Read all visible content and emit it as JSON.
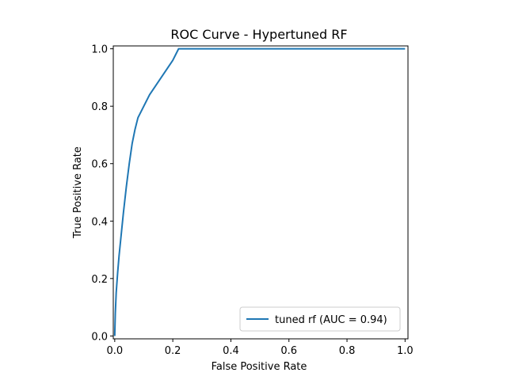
{
  "chart_data": {
    "type": "line",
    "title": "ROC Curve - Hypertuned RF",
    "xlabel": "False Positive Rate",
    "ylabel": "True Positive Rate",
    "xlim": [
      -0.005,
      1.01
    ],
    "ylim": [
      -0.01,
      1.01
    ],
    "x_ticks": [
      "0.0",
      "0.2",
      "0.4",
      "0.6",
      "0.8",
      "1.0"
    ],
    "y_ticks": [
      "0.0",
      "0.2",
      "0.4",
      "0.6",
      "0.8",
      "1.0"
    ],
    "legend_position": "lower-right",
    "series": [
      {
        "name": "tuned rf (AUC = 0.94)",
        "color": "#1f77b4",
        "x": [
          0.0,
          0.002,
          0.005,
          0.01,
          0.015,
          0.02,
          0.03,
          0.04,
          0.05,
          0.06,
          0.07,
          0.08,
          0.09,
          0.1,
          0.12,
          0.14,
          0.16,
          0.18,
          0.2,
          0.21,
          0.215,
          0.22,
          0.3,
          0.5,
          0.7,
          0.9,
          1.0
        ],
        "y": [
          0.0,
          0.08,
          0.15,
          0.22,
          0.28,
          0.33,
          0.43,
          0.52,
          0.6,
          0.67,
          0.72,
          0.76,
          0.78,
          0.8,
          0.84,
          0.87,
          0.9,
          0.93,
          0.96,
          0.98,
          0.99,
          1.0,
          1.0,
          1.0,
          1.0,
          1.0,
          1.0
        ]
      }
    ]
  }
}
